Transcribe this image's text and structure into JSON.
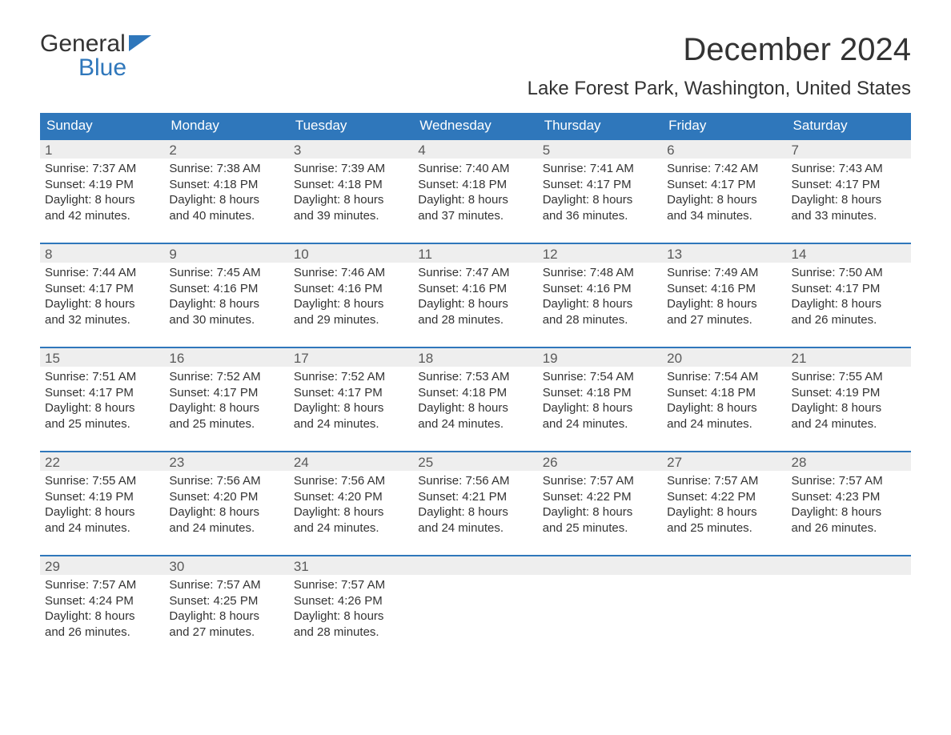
{
  "logo": {
    "line1": "General",
    "line2": "Blue"
  },
  "title": "December 2024",
  "location": "Lake Forest Park, Washington, United States",
  "colors": {
    "header_bg": "#2f77bb",
    "header_text": "#ffffff",
    "daynum_bg": "#eeeeee",
    "week_rule": "#2f77bb",
    "body_text": "#333333",
    "page_bg": "#ffffff"
  },
  "weekdays": [
    "Sunday",
    "Monday",
    "Tuesday",
    "Wednesday",
    "Thursday",
    "Friday",
    "Saturday"
  ],
  "weeks": [
    [
      {
        "num": "1",
        "sunrise": "Sunrise: 7:37 AM",
        "sunset": "Sunset: 4:19 PM",
        "day1": "Daylight: 8 hours",
        "day2": "and 42 minutes."
      },
      {
        "num": "2",
        "sunrise": "Sunrise: 7:38 AM",
        "sunset": "Sunset: 4:18 PM",
        "day1": "Daylight: 8 hours",
        "day2": "and 40 minutes."
      },
      {
        "num": "3",
        "sunrise": "Sunrise: 7:39 AM",
        "sunset": "Sunset: 4:18 PM",
        "day1": "Daylight: 8 hours",
        "day2": "and 39 minutes."
      },
      {
        "num": "4",
        "sunrise": "Sunrise: 7:40 AM",
        "sunset": "Sunset: 4:18 PM",
        "day1": "Daylight: 8 hours",
        "day2": "and 37 minutes."
      },
      {
        "num": "5",
        "sunrise": "Sunrise: 7:41 AM",
        "sunset": "Sunset: 4:17 PM",
        "day1": "Daylight: 8 hours",
        "day2": "and 36 minutes."
      },
      {
        "num": "6",
        "sunrise": "Sunrise: 7:42 AM",
        "sunset": "Sunset: 4:17 PM",
        "day1": "Daylight: 8 hours",
        "day2": "and 34 minutes."
      },
      {
        "num": "7",
        "sunrise": "Sunrise: 7:43 AM",
        "sunset": "Sunset: 4:17 PM",
        "day1": "Daylight: 8 hours",
        "day2": "and 33 minutes."
      }
    ],
    [
      {
        "num": "8",
        "sunrise": "Sunrise: 7:44 AM",
        "sunset": "Sunset: 4:17 PM",
        "day1": "Daylight: 8 hours",
        "day2": "and 32 minutes."
      },
      {
        "num": "9",
        "sunrise": "Sunrise: 7:45 AM",
        "sunset": "Sunset: 4:16 PM",
        "day1": "Daylight: 8 hours",
        "day2": "and 30 minutes."
      },
      {
        "num": "10",
        "sunrise": "Sunrise: 7:46 AM",
        "sunset": "Sunset: 4:16 PM",
        "day1": "Daylight: 8 hours",
        "day2": "and 29 minutes."
      },
      {
        "num": "11",
        "sunrise": "Sunrise: 7:47 AM",
        "sunset": "Sunset: 4:16 PM",
        "day1": "Daylight: 8 hours",
        "day2": "and 28 minutes."
      },
      {
        "num": "12",
        "sunrise": "Sunrise: 7:48 AM",
        "sunset": "Sunset: 4:16 PM",
        "day1": "Daylight: 8 hours",
        "day2": "and 28 minutes."
      },
      {
        "num": "13",
        "sunrise": "Sunrise: 7:49 AM",
        "sunset": "Sunset: 4:16 PM",
        "day1": "Daylight: 8 hours",
        "day2": "and 27 minutes."
      },
      {
        "num": "14",
        "sunrise": "Sunrise: 7:50 AM",
        "sunset": "Sunset: 4:17 PM",
        "day1": "Daylight: 8 hours",
        "day2": "and 26 minutes."
      }
    ],
    [
      {
        "num": "15",
        "sunrise": "Sunrise: 7:51 AM",
        "sunset": "Sunset: 4:17 PM",
        "day1": "Daylight: 8 hours",
        "day2": "and 25 minutes."
      },
      {
        "num": "16",
        "sunrise": "Sunrise: 7:52 AM",
        "sunset": "Sunset: 4:17 PM",
        "day1": "Daylight: 8 hours",
        "day2": "and 25 minutes."
      },
      {
        "num": "17",
        "sunrise": "Sunrise: 7:52 AM",
        "sunset": "Sunset: 4:17 PM",
        "day1": "Daylight: 8 hours",
        "day2": "and 24 minutes."
      },
      {
        "num": "18",
        "sunrise": "Sunrise: 7:53 AM",
        "sunset": "Sunset: 4:18 PM",
        "day1": "Daylight: 8 hours",
        "day2": "and 24 minutes."
      },
      {
        "num": "19",
        "sunrise": "Sunrise: 7:54 AM",
        "sunset": "Sunset: 4:18 PM",
        "day1": "Daylight: 8 hours",
        "day2": "and 24 minutes."
      },
      {
        "num": "20",
        "sunrise": "Sunrise: 7:54 AM",
        "sunset": "Sunset: 4:18 PM",
        "day1": "Daylight: 8 hours",
        "day2": "and 24 minutes."
      },
      {
        "num": "21",
        "sunrise": "Sunrise: 7:55 AM",
        "sunset": "Sunset: 4:19 PM",
        "day1": "Daylight: 8 hours",
        "day2": "and 24 minutes."
      }
    ],
    [
      {
        "num": "22",
        "sunrise": "Sunrise: 7:55 AM",
        "sunset": "Sunset: 4:19 PM",
        "day1": "Daylight: 8 hours",
        "day2": "and 24 minutes."
      },
      {
        "num": "23",
        "sunrise": "Sunrise: 7:56 AM",
        "sunset": "Sunset: 4:20 PM",
        "day1": "Daylight: 8 hours",
        "day2": "and 24 minutes."
      },
      {
        "num": "24",
        "sunrise": "Sunrise: 7:56 AM",
        "sunset": "Sunset: 4:20 PM",
        "day1": "Daylight: 8 hours",
        "day2": "and 24 minutes."
      },
      {
        "num": "25",
        "sunrise": "Sunrise: 7:56 AM",
        "sunset": "Sunset: 4:21 PM",
        "day1": "Daylight: 8 hours",
        "day2": "and 24 minutes."
      },
      {
        "num": "26",
        "sunrise": "Sunrise: 7:57 AM",
        "sunset": "Sunset: 4:22 PM",
        "day1": "Daylight: 8 hours",
        "day2": "and 25 minutes."
      },
      {
        "num": "27",
        "sunrise": "Sunrise: 7:57 AM",
        "sunset": "Sunset: 4:22 PM",
        "day1": "Daylight: 8 hours",
        "day2": "and 25 minutes."
      },
      {
        "num": "28",
        "sunrise": "Sunrise: 7:57 AM",
        "sunset": "Sunset: 4:23 PM",
        "day1": "Daylight: 8 hours",
        "day2": "and 26 minutes."
      }
    ],
    [
      {
        "num": "29",
        "sunrise": "Sunrise: 7:57 AM",
        "sunset": "Sunset: 4:24 PM",
        "day1": "Daylight: 8 hours",
        "day2": "and 26 minutes."
      },
      {
        "num": "30",
        "sunrise": "Sunrise: 7:57 AM",
        "sunset": "Sunset: 4:25 PM",
        "day1": "Daylight: 8 hours",
        "day2": "and 27 minutes."
      },
      {
        "num": "31",
        "sunrise": "Sunrise: 7:57 AM",
        "sunset": "Sunset: 4:26 PM",
        "day1": "Daylight: 8 hours",
        "day2": "and 28 minutes."
      },
      {
        "empty": true
      },
      {
        "empty": true
      },
      {
        "empty": true
      },
      {
        "empty": true
      }
    ]
  ]
}
